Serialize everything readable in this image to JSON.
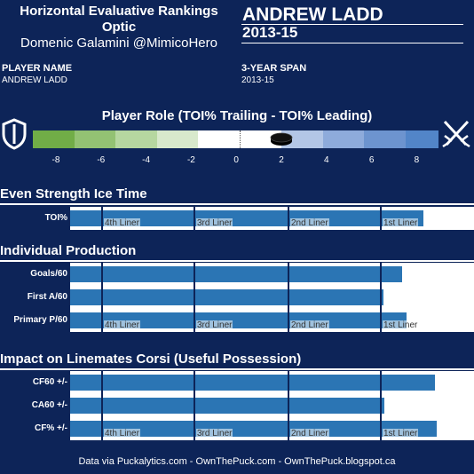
{
  "header": {
    "title_line1": "Horizontal Evaluative Rankings",
    "title_line2": "Optic",
    "author": "Domenic Galamini @MimicoHero",
    "player_name": "ANDREW LADD",
    "season": "2013-15"
  },
  "info": {
    "player_name_label": "PLAYER NAME",
    "player_name_value": "ANDREW LADD",
    "span_label": "3-YEAR SPAN",
    "span_value": "2013-15"
  },
  "role": {
    "title": "Player Role (TOI% Trailing - TOI% Leading)",
    "scale": [
      "-8",
      "-6",
      "-4",
      "-2",
      "0",
      "2",
      "4",
      "6",
      "8"
    ],
    "marker_value": 2,
    "colors": [
      "#71ad47",
      "#93c273",
      "#b6d7a0",
      "#d8e9cc",
      "#ffffff",
      "#ffffff",
      "#b3c6e6",
      "#8eabdb",
      "#6d94cf",
      "#5285c8"
    ]
  },
  "sections": {
    "even_strength": "Even Strength Ice Time",
    "production": "Individual Production",
    "impact": "Impact on Linemates Corsi (Useful Possession)"
  },
  "tier_labels": [
    "4th Liner",
    "3rd Liner",
    "2nd Liner",
    "1st Liner"
  ],
  "chart_data": {
    "type": "bar",
    "series": [
      {
        "name": "TOI%",
        "value_fraction": 0.874
      },
      {
        "name": "Goals/60",
        "value_fraction": 0.821
      },
      {
        "name": "First A/60",
        "value_fraction": 0.776
      },
      {
        "name": "Primary P/60",
        "value_fraction": 0.833
      },
      {
        "name": "CF60 +/-",
        "value_fraction": 0.903
      },
      {
        "name": "CA60 +/-",
        "value_fraction": 0.778
      },
      {
        "name": "CF% +/-",
        "value_fraction": 0.908
      }
    ]
  },
  "footer": "Data via Puckalytics.com - OwnThePuck.com - OwnThePuck.blogspot.ca"
}
